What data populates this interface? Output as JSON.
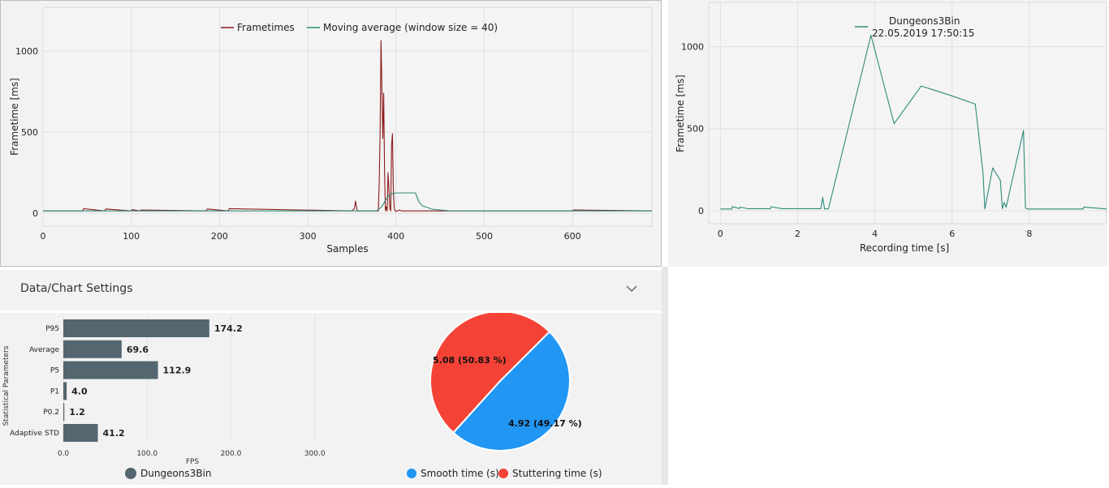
{
  "frametimes_panel": {
    "legend": {
      "series1": "Frametimes",
      "series2": "Moving average (window size = 40)"
    },
    "xlabel": "Samples",
    "ylabel": "Frametime [ms]",
    "colors": {
      "frametimes": "#8b1a1a",
      "moving_average": "#2e8b7a"
    }
  },
  "recording_panel": {
    "legend": {
      "name": "Dungeons3Bin",
      "date": "22.05.2019 17:50:15"
    },
    "xlabel": "Recording time [s]",
    "ylabel": "Frametime [ms]",
    "color": "#2e8b7a"
  },
  "settings": {
    "title": "Data/Chart Settings"
  },
  "bar_panel": {
    "ylabel": "Statistical Parameters",
    "xlabel": "FPS",
    "legend": "Dungeons3Bin",
    "color": "#546670"
  },
  "pie_panel": {
    "legend": {
      "smooth": "Smooth time (s)",
      "stutter": "Stuttering time (s)"
    },
    "colors": {
      "smooth": "#2196f3",
      "stutter": "#f44336"
    }
  },
  "chart_data": [
    {
      "type": "line",
      "xlim": [
        0,
        690
      ],
      "ylim": [
        -80,
        1270
      ],
      "xticks": [
        0,
        100,
        200,
        300,
        400,
        500,
        600
      ],
      "yticks": [
        0,
        500,
        1000
      ],
      "series": [
        {
          "name": "Frametimes",
          "x": [
            0,
            45,
            46,
            70,
            71,
            100,
            101,
            110,
            111,
            185,
            186,
            210,
            211,
            350,
            353,
            354,
            356,
            380,
            381,
            382,
            383,
            384,
            385,
            386,
            387,
            388,
            389,
            390,
            391,
            392,
            393,
            394,
            395,
            396,
            397,
            398,
            399,
            400,
            402,
            404,
            406,
            410,
            430,
            460,
            600,
            601,
            690
          ],
          "y": [
            14,
            14,
            28,
            14,
            26,
            14,
            22,
            14,
            20,
            14,
            26,
            14,
            28,
            14,
            30,
            75,
            14,
            14,
            190,
            500,
            1065,
            780,
            460,
            740,
            250,
            14,
            40,
            14,
            250,
            150,
            30,
            14,
            420,
            490,
            140,
            30,
            14,
            12,
            14,
            20,
            14,
            14,
            14,
            14,
            14,
            20,
            14
          ]
        },
        {
          "name": "Moving average (window size = 40)",
          "x": [
            0,
            378,
            384,
            388,
            392,
            396,
            400,
            405,
            410,
            418,
            422,
            426,
            430,
            436,
            440,
            460,
            690
          ],
          "y": [
            14,
            14,
            40,
            80,
            110,
            120,
            125,
            125,
            125,
            125,
            125,
            70,
            45,
            35,
            25,
            15,
            14
          ]
        }
      ]
    },
    {
      "type": "line",
      "xlim": [
        -0.3,
        10
      ],
      "ylim": [
        -80,
        1270
      ],
      "xticks": [
        0,
        2,
        4,
        6,
        8
      ],
      "yticks": [
        0,
        500,
        1000
      ],
      "series": [
        {
          "name": "Dungeons3Bin",
          "x": [
            0,
            0.3,
            0.31,
            0.5,
            0.51,
            0.7,
            1.3,
            1.31,
            1.6,
            2.6,
            2.65,
            2.7,
            2.8,
            3.9,
            4.5,
            5.2,
            6.0,
            6.6,
            6.8,
            6.85,
            7.05,
            7.25,
            7.3,
            7.35,
            7.4,
            7.85,
            7.9,
            7.95,
            8.2,
            9.4,
            9.41,
            10
          ],
          "y": [
            10,
            10,
            25,
            12,
            22,
            12,
            12,
            24,
            12,
            12,
            80,
            10,
            12,
            1070,
            530,
            760,
            700,
            650,
            230,
            10,
            260,
            185,
            12,
            50,
            20,
            490,
            15,
            10,
            10,
            10,
            22,
            10
          ]
        }
      ]
    },
    {
      "type": "bar",
      "orientation": "horizontal",
      "categories": [
        "P95",
        "Average",
        "P5",
        "P1",
        "P0.2",
        "Adaptive STD"
      ],
      "values": [
        174.2,
        69.6,
        112.9,
        4.0,
        1.2,
        41.2
      ],
      "data_labels": [
        "174.2",
        "69.6",
        "112.9",
        "4.0",
        "1.2",
        "41.2"
      ],
      "xticks": [
        "0.0",
        "100.0",
        "200.0",
        "300.0"
      ],
      "xlim": [
        0,
        310
      ]
    },
    {
      "type": "pie",
      "labels": [
        "Smooth time (s)",
        "Stuttering time (s)"
      ],
      "values": [
        4.92,
        5.08
      ],
      "data_labels": [
        "4.92 (49.17 %)",
        "5.08 (50.83 %)"
      ]
    }
  ]
}
